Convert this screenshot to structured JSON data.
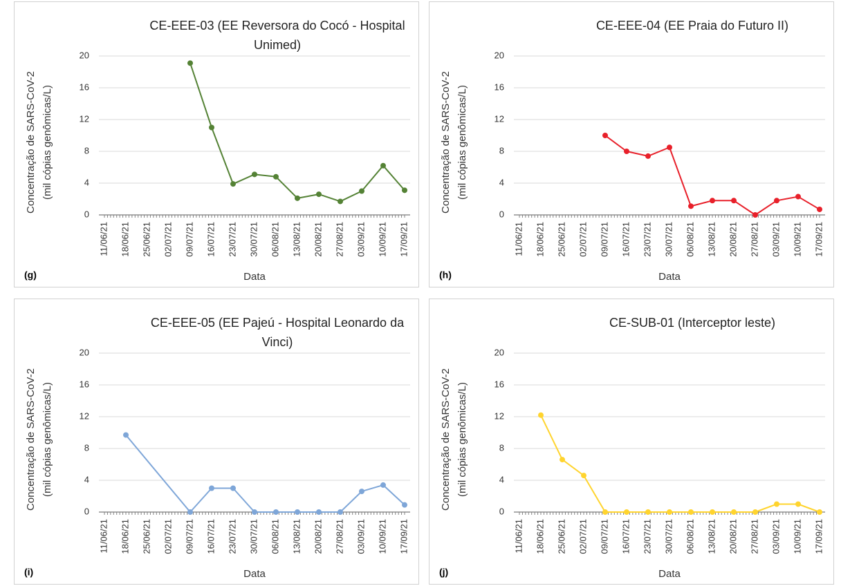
{
  "chart_data": [
    {
      "type": "line",
      "title": "CE-EEE-03 (EE Reversora do Cocó - Hospital Unimed)",
      "panel_label": "(g)",
      "xlabel": "Data",
      "ylabel": [
        "Concentração de SARS-CoV-2",
        "(mil cópias genômicas/L)"
      ],
      "categories": [
        "11/06/21",
        "18/06/21",
        "25/06/21",
        "02/07/21",
        "09/07/21",
        "16/07/21",
        "23/07/21",
        "30/07/21",
        "06/08/21",
        "13/08/21",
        "20/08/21",
        "27/08/21",
        "03/09/21",
        "10/09/21",
        "17/09/21"
      ],
      "values": [
        null,
        null,
        null,
        null,
        19.1,
        11,
        3.9,
        5.1,
        4.8,
        2.1,
        2.6,
        1.7,
        3.0,
        6.2,
        3.1
      ],
      "color": "#548235",
      "ylim": [
        0,
        20
      ],
      "yticks": [
        0,
        4,
        8,
        12,
        16,
        20
      ],
      "grid": true
    },
    {
      "type": "line",
      "title": "CE-EEE-04 (EE Praia do Futuro II)",
      "panel_label": "(h)",
      "xlabel": "Data",
      "ylabel": [
        "Concentração de SARS-CoV-2",
        "(mil cópias genômicas/L)"
      ],
      "categories": [
        "11/06/21",
        "18/06/21",
        "25/06/21",
        "02/07/21",
        "09/07/21",
        "16/07/21",
        "23/07/21",
        "30/07/21",
        "06/08/21",
        "13/08/21",
        "20/08/21",
        "27/08/21",
        "03/09/21",
        "10/09/21",
        "17/09/21"
      ],
      "values": [
        null,
        null,
        null,
        null,
        10.0,
        8.0,
        7.4,
        8.5,
        1.1,
        1.8,
        1.8,
        0,
        1.8,
        2.3,
        0.7
      ],
      "color": "#e8202a",
      "ylim": [
        0,
        20
      ],
      "yticks": [
        0,
        4,
        8,
        12,
        16,
        20
      ],
      "grid": true
    },
    {
      "type": "line",
      "title": "CE-EEE-05 (EE Pajeú - Hospital Leonardo da Vinci)",
      "panel_label": "(i)",
      "xlabel": "Data",
      "ylabel": [
        "Concentração de SARS-CoV-2",
        "(mil cópias genômicas/L)"
      ],
      "categories": [
        "11/06/21",
        "18/06/21",
        "25/06/21",
        "02/07/21",
        "09/07/21",
        "16/07/21",
        "23/07/21",
        "30/07/21",
        "06/08/21",
        "13/08/21",
        "20/08/21",
        "27/08/21",
        "03/09/21",
        "10/09/21",
        "17/09/21"
      ],
      "values": [
        null,
        9.7,
        null,
        null,
        0,
        3.0,
        3.0,
        0,
        0,
        0,
        0,
        0,
        2.6,
        3.4,
        0.9
      ],
      "color": "#7ea6d8",
      "ylim": [
        0,
        20
      ],
      "yticks": [
        0,
        4,
        8,
        12,
        16,
        20
      ],
      "grid": true
    },
    {
      "type": "line",
      "title": "CE-SUB-01 (Interceptor leste)",
      "panel_label": "(j)",
      "xlabel": "Data",
      "ylabel": [
        "Concentração de SARS-CoV-2",
        "(mil cópias genômicas/L)"
      ],
      "categories": [
        "11/06/21",
        "18/06/21",
        "25/06/21",
        "02/07/21",
        "09/07/21",
        "16/07/21",
        "23/07/21",
        "30/07/21",
        "06/08/21",
        "13/08/21",
        "20/08/21",
        "27/08/21",
        "03/09/21",
        "10/09/21",
        "17/09/21"
      ],
      "values": [
        null,
        12.2,
        6.6,
        4.6,
        0,
        0,
        0,
        0,
        0,
        0,
        0,
        0,
        1.0,
        1.0,
        0
      ],
      "color": "#ffd42e",
      "ylim": [
        0,
        20
      ],
      "yticks": [
        0,
        4,
        8,
        12,
        16,
        20
      ],
      "grid": true
    }
  ]
}
